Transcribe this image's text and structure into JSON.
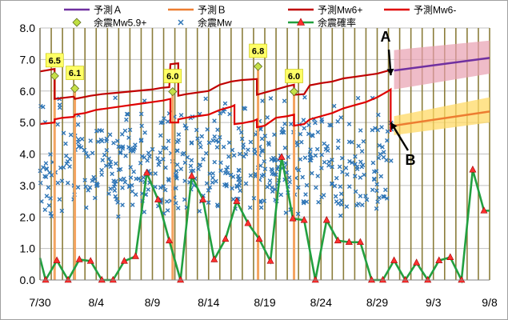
{
  "chart_data": {
    "type": "line",
    "title": "",
    "xlabel": "",
    "ylabel": "",
    "ylim": [
      0,
      8
    ],
    "yticks": [
      "0.0",
      "1.0",
      "2.0",
      "3.0",
      "4.0",
      "5.0",
      "6.0",
      "7.0",
      "8.0"
    ],
    "xlim": [
      0,
      40
    ],
    "xticks": [
      {
        "x": 0,
        "label": "7/30"
      },
      {
        "x": 5,
        "label": "8/4"
      },
      {
        "x": 10,
        "label": "8/9"
      },
      {
        "x": 15,
        "label": "8/14"
      },
      {
        "x": 20,
        "label": "8/19"
      },
      {
        "x": 25,
        "label": "8/24"
      },
      {
        "x": 30,
        "label": "8/29"
      },
      {
        "x": 35,
        "label": "9/3"
      },
      {
        "x": 40,
        "label": "9/8"
      }
    ],
    "grid": true,
    "legend_position": "top",
    "legend": [
      {
        "label": "予測Ａ",
        "color": "#7030a0",
        "kind": "line"
      },
      {
        "label": "予測Ｂ",
        "color": "#ed7d31",
        "kind": "line"
      },
      {
        "label": "予測Mw6+",
        "color": "#c00000",
        "kind": "line"
      },
      {
        "label": "予測Mw6-",
        "color": "#e00000",
        "kind": "line"
      },
      {
        "label": "余震Mw5.9+",
        "color": "#bfe040",
        "kind": "diamond"
      },
      {
        "label": "余震Mw",
        "color": "#2e75b6",
        "kind": "cross"
      },
      {
        "label": "余震確率",
        "color": "#22a040",
        "kind": "triangle-line"
      }
    ],
    "colors": {
      "forecast_a": "#7030a0",
      "forecast_a_band": "#e8a0b0",
      "forecast_b": "#ed7d31",
      "forecast_b_band": "#ffd966",
      "mw6_plus": "#c00000",
      "mw6_minus": "#e00000",
      "large_shock_bar": "#f4a460",
      "large_marker": "#c6e048",
      "label_box": "#ffff66",
      "aftershock": "#2e75b6",
      "probability_line": "#22a040",
      "probability_marker": "#ff3030",
      "day_line": "#8b7d3a",
      "grid": "#c0c0c0"
    },
    "annotations": [
      {
        "label": "A",
        "x": 31.6,
        "y": 7.0
      },
      {
        "label": "B",
        "x": 31.6,
        "y": 3.8
      }
    ],
    "series": [
      {
        "name": "予測Mw6+",
        "steps": [
          [
            0,
            6.62
          ],
          [
            1.3,
            6.7
          ],
          [
            1.3,
            5.75
          ],
          [
            2,
            5.78
          ],
          [
            3,
            5.82
          ],
          [
            3.1,
            5.75
          ],
          [
            4.5,
            5.85
          ],
          [
            5.5,
            5.9
          ],
          [
            7,
            5.95
          ],
          [
            8.5,
            6.0
          ],
          [
            10,
            6.05
          ],
          [
            10.8,
            6.1
          ],
          [
            11.5,
            6.12
          ],
          [
            11.6,
            6.85
          ],
          [
            12.3,
            6.88
          ],
          [
            12.3,
            5.85
          ],
          [
            13,
            5.9
          ],
          [
            14,
            5.95
          ],
          [
            15,
            6.0
          ],
          [
            16,
            6.2
          ],
          [
            17,
            6.3
          ],
          [
            18,
            6.35
          ],
          [
            19.3,
            6.38
          ],
          [
            19.3,
            5.88
          ],
          [
            20,
            5.95
          ],
          [
            21,
            6.05
          ],
          [
            22,
            6.15
          ],
          [
            22.6,
            6.2
          ],
          [
            22.6,
            5.88
          ],
          [
            23.5,
            5.9
          ],
          [
            24,
            6.18
          ],
          [
            25,
            6.25
          ],
          [
            26,
            6.3
          ],
          [
            27,
            6.4
          ],
          [
            28,
            6.45
          ],
          [
            29,
            6.5
          ],
          [
            30,
            6.55
          ],
          [
            31,
            6.65
          ]
        ]
      },
      {
        "name": "予測Mw6-",
        "steps": [
          [
            0,
            4.95
          ],
          [
            1.3,
            5.0
          ],
          [
            1.3,
            5.1
          ],
          [
            2,
            5.15
          ],
          [
            3,
            5.18
          ],
          [
            3.1,
            5.25
          ],
          [
            4,
            5.3
          ],
          [
            5,
            5.4
          ],
          [
            6,
            5.45
          ],
          [
            7,
            5.5
          ],
          [
            8,
            5.55
          ],
          [
            9,
            5.6
          ],
          [
            10,
            5.65
          ],
          [
            11,
            5.7
          ],
          [
            11.6,
            5.75
          ],
          [
            11.6,
            5.0
          ],
          [
            12.3,
            5.0
          ],
          [
            12.3,
            5.1
          ],
          [
            13,
            5.15
          ],
          [
            14,
            5.2
          ],
          [
            15,
            5.25
          ],
          [
            16,
            5.4
          ],
          [
            17,
            5.5
          ],
          [
            17.3,
            5.55
          ],
          [
            17.3,
            4.95
          ],
          [
            18,
            4.98
          ],
          [
            19,
            5.05
          ],
          [
            19.3,
            5.1
          ],
          [
            19.3,
            4.85
          ],
          [
            20,
            4.9
          ],
          [
            21,
            5.15
          ],
          [
            22,
            5.2
          ],
          [
            22.6,
            5.25
          ],
          [
            22.6,
            4.9
          ],
          [
            23.5,
            4.95
          ],
          [
            24,
            5.1
          ],
          [
            25,
            5.2
          ],
          [
            26,
            5.3
          ],
          [
            27,
            5.45
          ],
          [
            28,
            5.55
          ],
          [
            29,
            5.65
          ],
          [
            30,
            5.8
          ],
          [
            31,
            6.0
          ],
          [
            31.2,
            6.05
          ],
          [
            31.2,
            4.7
          ]
        ]
      },
      {
        "name": "予測Ａ",
        "x": [
          31.5,
          40
        ],
        "values": [
          6.65,
          7.05
        ],
        "band": [
          [
            31.5,
            6.05,
            7.3
          ],
          [
            40,
            6.55,
            7.6
          ]
        ]
      },
      {
        "name": "予測Ｂ",
        "x": [
          31.5,
          40
        ],
        "values": [
          4.9,
          5.35
        ],
        "band": [
          [
            31.5,
            4.6,
            5.2
          ],
          [
            40,
            5.0,
            5.8
          ]
        ]
      },
      {
        "name": "余震Mw5.9+",
        "points": [
          {
            "x": 1.3,
            "y": 6.48,
            "label": "6.5"
          },
          {
            "x": 3.1,
            "y": 6.08,
            "label": "6.1"
          },
          {
            "x": 11.8,
            "y": 5.98,
            "label": "6.0"
          },
          {
            "x": 19.4,
            "y": 6.78,
            "label": "6.8"
          },
          {
            "x": 22.6,
            "y": 5.98,
            "label": "6.0"
          }
        ]
      },
      {
        "name": "余震確率",
        "x": [
          0,
          0.5,
          1.5,
          2.5,
          3.5,
          4.5,
          5.5,
          6.5,
          7.5,
          8.5,
          9.5,
          10.5,
          11.5,
          12.5,
          13.5,
          14.5,
          15.5,
          16.5,
          17.5,
          18.5,
          19.5,
          20.5,
          21.5,
          22.5,
          23.5,
          24.5,
          25.5,
          26.5,
          27.5,
          28.5,
          29.5,
          30.5,
          31.5,
          32.5,
          33.5,
          34.5,
          35.5,
          36.5,
          37.5,
          38.5,
          39.5,
          40
        ],
        "values": [
          0.7,
          0.0,
          0.62,
          0.0,
          0.65,
          0.6,
          0.0,
          0.0,
          0.6,
          0.75,
          3.4,
          2.55,
          1.25,
          0.0,
          3.3,
          2.55,
          0.65,
          1.3,
          2.5,
          1.8,
          1.3,
          0.6,
          3.9,
          1.95,
          1.9,
          0.0,
          1.9,
          1.25,
          1.2,
          1.2,
          0.0,
          0.0,
          0.62,
          0.0,
          0.55,
          0.0,
          0.62,
          0.72,
          0.0,
          3.5,
          2.2,
          2.2
        ]
      }
    ],
    "aftershock_seed": 20
  }
}
